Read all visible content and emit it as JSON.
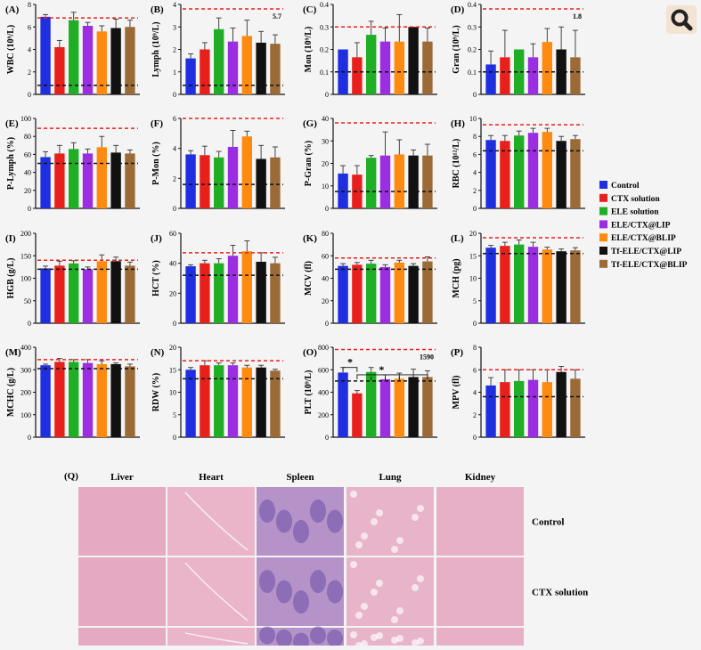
{
  "ui": {
    "zoom_icon": "magnifier-icon"
  },
  "legend": [
    {
      "label": "Control",
      "color": "#1f2fe0"
    },
    {
      "label": "CTX solution",
      "color": "#e8201c"
    },
    {
      "label": "ELE solution",
      "color": "#1fae25"
    },
    {
      "label": "ELE/CTX@LIP",
      "color": "#9a2ee0"
    },
    {
      "label": "ELE/CTX@BLIP",
      "color": "#ff8a10"
    },
    {
      "label": "Tf-ELE/CTX@LIP",
      "color": "#111111"
    },
    {
      "label": "Tf-ELE/CTX@BLIP",
      "color": "#9b6a36"
    }
  ],
  "colors": {
    "upper_ref": "#e8201c",
    "lower_ref": "#111111"
  },
  "chart_data": [
    {
      "type": "bar",
      "panel": "(A)",
      "ylabel": "WBC (10⁹/L)",
      "ylim": [
        0,
        8
      ],
      "yticks": [
        0,
        2,
        4,
        6,
        8
      ],
      "values": [
        6.9,
        4.2,
        6.6,
        6.1,
        5.6,
        5.9,
        6.0
      ],
      "errors": [
        0.2,
        0.6,
        0.7,
        0.3,
        0.5,
        0.8,
        0.6
      ],
      "ref_high": 6.8,
      "ref_low": 0.8
    },
    {
      "type": "bar",
      "panel": "(B)",
      "ylabel": "Lymph (10⁹/L)",
      "ylim": [
        0,
        4
      ],
      "yticks": [
        0,
        1,
        2,
        3,
        4
      ],
      "values": [
        1.6,
        2.0,
        2.9,
        2.35,
        2.6,
        2.3,
        2.25
      ],
      "errors": [
        0.2,
        0.3,
        0.5,
        0.6,
        0.7,
        0.5,
        0.4
      ],
      "ref_high": 3.8,
      "ref_low": 0.4,
      "ref_label": "5.7"
    },
    {
      "type": "bar",
      "panel": "(C)",
      "ylabel": "Mon (10⁹/L)",
      "ylim": [
        0,
        0.4
      ],
      "yticks": [
        0,
        0.1,
        0.2,
        0.3,
        0.4
      ],
      "values": [
        0.2,
        0.165,
        0.265,
        0.235,
        0.235,
        0.3,
        0.235
      ],
      "errors": [
        0,
        0.065,
        0.06,
        0.06,
        0.12,
        0,
        0.06
      ],
      "ref_high": 0.3,
      "ref_low": 0.1
    },
    {
      "type": "bar",
      "panel": "(D)",
      "ylabel": "Gran (10⁹/L)",
      "ylim": [
        0,
        0.4
      ],
      "yticks": [
        0,
        0.1,
        0.2,
        0.3,
        0.4
      ],
      "values": [
        0.133,
        0.165,
        0.2,
        0.165,
        0.233,
        0.2,
        0.165
      ],
      "errors": [
        0.06,
        0.12,
        0,
        0.06,
        0.06,
        0.1,
        0.12
      ],
      "ref_high": 0.38,
      "ref_low": 0.1,
      "ref_label": "1.8"
    },
    {
      "type": "bar",
      "panel": "(E)",
      "ylabel": "P-Lymph (%)",
      "ylim": [
        0,
        100
      ],
      "yticks": [
        0,
        20,
        40,
        60,
        80,
        100
      ],
      "values": [
        57,
        61,
        66,
        61,
        68,
        62,
        61
      ],
      "errors": [
        6,
        9,
        7,
        5,
        12,
        8,
        4
      ],
      "ref_high": 89,
      "ref_low": 50
    },
    {
      "type": "bar",
      "panel": "(F)",
      "ylabel": "P-Mon (%)",
      "ylim": [
        0,
        6
      ],
      "yticks": [
        0,
        2,
        4,
        6
      ],
      "values": [
        3.6,
        3.55,
        3.4,
        4.1,
        4.8,
        3.3,
        3.4
      ],
      "errors": [
        0.25,
        0.6,
        0.4,
        1.1,
        0.35,
        0.9,
        0.7
      ],
      "ref_high": 6.0,
      "ref_low": 1.6
    },
    {
      "type": "bar",
      "panel": "(G)",
      "ylabel": "P-Gran (%)",
      "ylim": [
        0,
        40
      ],
      "yticks": [
        0,
        10,
        20,
        30,
        40
      ],
      "values": [
        15.5,
        15,
        22.5,
        23.5,
        24,
        23.5,
        23.5
      ],
      "errors": [
        3.5,
        4,
        1,
        10.5,
        6.5,
        2.5,
        5
      ],
      "ref_high": 38,
      "ref_low": 7.5
    },
    {
      "type": "bar",
      "panel": "(H)",
      "ylabel": "RBC (10¹²/L)",
      "ylim": [
        0,
        10
      ],
      "yticks": [
        0,
        2,
        4,
        6,
        8,
        10
      ],
      "values": [
        7.6,
        7.5,
        8.1,
        8.4,
        8.5,
        7.5,
        7.7
      ],
      "errors": [
        0.5,
        0.6,
        0.5,
        0.5,
        0.4,
        0.5,
        0.4
      ],
      "ref_high": 9.3,
      "ref_low": 6.4
    },
    {
      "type": "bar",
      "panel": "(I)",
      "ylabel": "HGB (g/L)",
      "ylim": [
        0,
        200
      ],
      "yticks": [
        0,
        50,
        100,
        150,
        200
      ],
      "values": [
        122,
        128,
        133,
        120,
        138,
        138,
        128
      ],
      "errors": [
        5,
        10,
        6,
        5,
        14,
        9,
        8
      ],
      "ref_high": 140,
      "ref_low": 120
    },
    {
      "type": "bar",
      "panel": "(J)",
      "ylabel": "HCT (%)",
      "ylim": [
        0,
        60
      ],
      "yticks": [
        0,
        20,
        40,
        60
      ],
      "values": [
        38,
        40,
        40,
        45,
        48,
        41,
        40
      ],
      "errors": [
        1,
        2,
        3,
        7,
        7,
        6,
        4
      ],
      "ref_high": 47,
      "ref_low": 32
    },
    {
      "type": "bar",
      "panel": "(K)",
      "ylabel": "MCV (fl)",
      "ylim": [
        0,
        80
      ],
      "yticks": [
        0,
        20,
        40,
        60,
        80
      ],
      "values": [
        51,
        52,
        53,
        50,
        54,
        51,
        55
      ],
      "errors": [
        2,
        2,
        3,
        2,
        2,
        2,
        4
      ],
      "ref_high": 58,
      "ref_low": 48
    },
    {
      "type": "bar",
      "panel": "(L)",
      "ylabel": "MCH (pg)",
      "ylim": [
        0,
        20
      ],
      "yticks": [
        0,
        5,
        10,
        15,
        20
      ],
      "values": [
        16.8,
        17.2,
        17.5,
        17,
        16.4,
        16,
        16.2
      ],
      "errors": [
        0.5,
        0.8,
        1,
        1,
        0.5,
        0.5,
        0.6
      ],
      "ref_high": 19,
      "ref_low": 15.5
    },
    {
      "type": "bar",
      "panel": "(M)",
      "ylabel": "MCHC (g/L)",
      "ylim": [
        0,
        400
      ],
      "yticks": [
        0,
        100,
        200,
        300,
        400
      ],
      "values": [
        320,
        335,
        335,
        330,
        325,
        325,
        315
      ],
      "errors": [
        5,
        15,
        10,
        15,
        15,
        5,
        10
      ],
      "ref_high": 345,
      "ref_low": 305
    },
    {
      "type": "bar",
      "panel": "(N)",
      "ylabel": "RDW (%)",
      "ylim": [
        0,
        20
      ],
      "yticks": [
        0,
        5,
        10,
        15,
        20
      ],
      "values": [
        15,
        16,
        16,
        16,
        15.5,
        15.5,
        14.8
      ],
      "errors": [
        0.5,
        1,
        0.5,
        0.5,
        0.5,
        0.5,
        0.3
      ],
      "ref_high": 17,
      "ref_low": 13
    },
    {
      "type": "bar",
      "panel": "(O)",
      "ylabel": "PLT (10⁹/L)",
      "ylim": [
        0,
        800
      ],
      "yticks": [
        0,
        200,
        400,
        600,
        800
      ],
      "values": [
        575,
        390,
        580,
        515,
        520,
        535,
        535
      ],
      "errors": [
        45,
        25,
        40,
        40,
        50,
        70,
        55
      ],
      "ref_high": 780,
      "ref_low": 500,
      "ref_label": "1590",
      "annotations": [
        "*",
        "*"
      ]
    },
    {
      "type": "bar",
      "panel": "(P)",
      "ylabel": "MPV (fl)",
      "ylim": [
        0,
        8
      ],
      "yticks": [
        0,
        2,
        4,
        6,
        8
      ],
      "values": [
        4.6,
        4.9,
        5.0,
        5.1,
        4.9,
        5.8,
        5.2
      ],
      "errors": [
        0.7,
        1.1,
        1.0,
        0.9,
        1.1,
        0.5,
        0.8
      ],
      "ref_high": 6.0,
      "ref_low": 3.6
    }
  ],
  "histology": {
    "panel": "(Q)",
    "columns": [
      "Liver",
      "Heart",
      "Spleen",
      "Lung",
      "Kidney"
    ],
    "rows": [
      "Control",
      "CTX solution"
    ],
    "tissue_colors": [
      "#e6a9c2",
      "#eab5c9",
      "#b592c8",
      "#e7b4c9",
      "#e8b0c6"
    ]
  }
}
